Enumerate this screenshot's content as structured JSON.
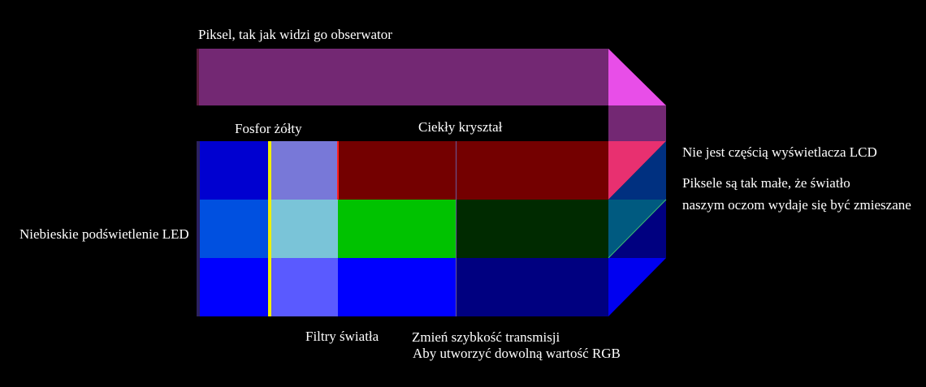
{
  "labels": {
    "pixel_observer": "Piksel, tak jak widzi go obserwator",
    "phosphor_yellow": "Fosfor żółty",
    "liquid_crystal": "Ciekły kryształ",
    "not_part_lcd": "Nie jest częścią wyświetlacza LCD",
    "pixels_small_1": "Piksele są tak małe, że światło",
    "pixels_small_2": "naszym oczom wydaje się być zmieszane",
    "blue_backlight": "Niebieskie podświetlenie LED",
    "light_filters": "Filtry światła",
    "change_rate": "Zmień szybkość transmisji",
    "any_rgb": "Aby utworzyć dowolną wartość RGB"
  },
  "colors": {
    "observed_pixel": "#732873",
    "red_filter": "#740000",
    "green_filter": "#00c200",
    "blue_filter": "#0000ff",
    "dark_green_crystal": "#002a00",
    "dark_blue_crystal": "#000080",
    "backlight_blue": "#0000d0",
    "phosphor_line": "#f0f000",
    "magenta_prism": "#e84ee8"
  }
}
